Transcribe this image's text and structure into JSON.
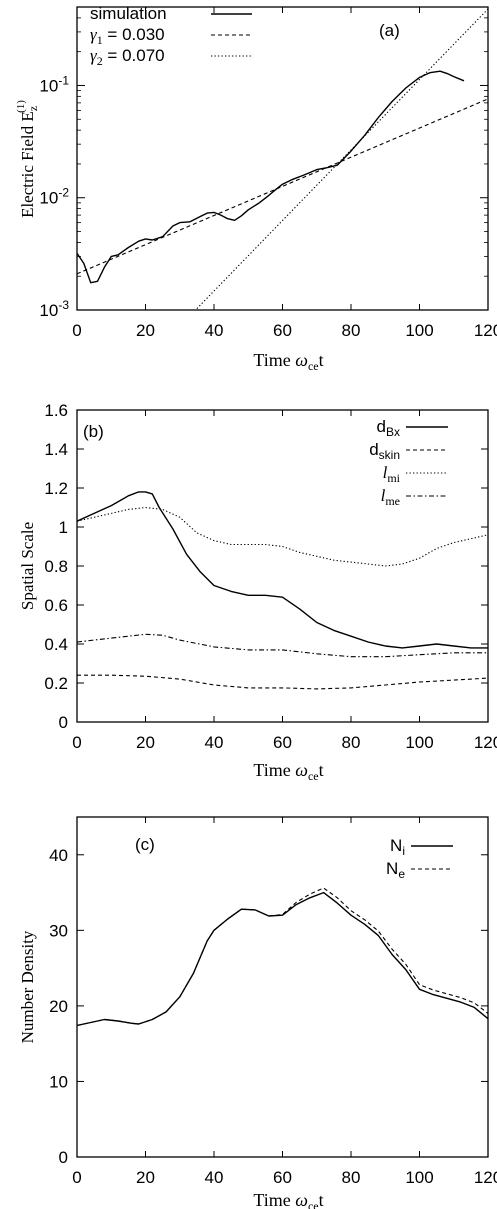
{
  "chart_data": [
    {
      "panel": "(a)",
      "type": "line",
      "xlabel": {
        "base": "Time ",
        "greek": "ω",
        "sub": "ce",
        "rest": "t"
      },
      "ylabel": {
        "base": "Electric Field E",
        "sub": "z",
        "sup": "(1)"
      },
      "yscale": "log",
      "xlim": [
        0,
        120
      ],
      "ylim": [
        0.001,
        0.5
      ],
      "xticks": [
        "0",
        "20",
        "40",
        "60",
        "80",
        "100",
        "120"
      ],
      "yticks": [
        {
          "value": 0.001,
          "base": "10",
          "exp": "-3"
        },
        {
          "value": 0.01,
          "base": "10",
          "exp": "-2"
        },
        {
          "value": 0.1,
          "base": "10",
          "exp": "-1"
        }
      ],
      "legend_position": "top-left",
      "series": [
        {
          "name": "simulation",
          "style": "solid",
          "x": [
            0,
            2,
            4,
            6,
            8,
            10,
            12,
            15,
            18,
            20,
            22,
            25,
            28,
            30,
            33,
            36,
            38,
            40,
            42,
            44,
            46,
            48,
            50,
            53,
            56,
            58,
            60,
            63,
            66,
            70,
            73,
            76,
            80,
            84,
            88,
            92,
            96,
            100,
            103,
            106,
            108,
            110,
            113
          ],
          "y": [
            0.0032,
            0.0026,
            0.00175,
            0.0018,
            0.0024,
            0.003,
            0.0031,
            0.0036,
            0.0041,
            0.0043,
            0.0042,
            0.0045,
            0.0056,
            0.006,
            0.0061,
            0.0068,
            0.0073,
            0.0074,
            0.007,
            0.0065,
            0.0063,
            0.0069,
            0.0078,
            0.0089,
            0.0105,
            0.0118,
            0.0132,
            0.0146,
            0.0158,
            0.0178,
            0.0185,
            0.0195,
            0.026,
            0.036,
            0.052,
            0.072,
            0.095,
            0.118,
            0.13,
            0.134,
            0.128,
            0.12,
            0.11
          ]
        },
        {
          "name": "γ1 = 0.030",
          "label_greek": "γ",
          "label_sub": "1",
          "label_rest": " = 0.030",
          "style": "dashed",
          "x": [
            0,
            120
          ],
          "y": [
            0.0021,
            0.076
          ]
        },
        {
          "name": "γ2 = 0.070",
          "label_greek": "γ",
          "label_sub": "2",
          "label_rest": " = 0.070",
          "style": "dotted",
          "x": [
            35,
            120
          ],
          "y": [
            0.00103,
            0.48
          ]
        }
      ]
    },
    {
      "panel": "(b)",
      "type": "line",
      "xlabel": {
        "base": "Time ",
        "greek": "ω",
        "sub": "ce",
        "rest": "t"
      },
      "ylabel": {
        "base": "Spatial Scale"
      },
      "xlim": [
        0,
        120
      ],
      "ylim": [
        0,
        1.6
      ],
      "xticks": [
        "0",
        "20",
        "40",
        "60",
        "80",
        "100",
        "120"
      ],
      "yticks": [
        "0",
        "0.2",
        "0.4",
        "0.6",
        "0.8",
        "1",
        "1.2",
        "1.4",
        "1.6"
      ],
      "legend_position": "top-right",
      "series": [
        {
          "name": "dBx",
          "label_base": "d",
          "label_sub": "Bx",
          "label_italic": false,
          "style": "solid",
          "x": [
            0,
            5,
            10,
            15,
            18,
            20,
            22,
            24,
            28,
            32,
            36,
            40,
            45,
            50,
            55,
            60,
            65,
            70,
            75,
            80,
            85,
            90,
            95,
            100,
            105,
            110,
            115,
            120
          ],
          "y": [
            1.03,
            1.07,
            1.11,
            1.16,
            1.18,
            1.18,
            1.17,
            1.1,
            0.99,
            0.86,
            0.77,
            0.7,
            0.67,
            0.65,
            0.65,
            0.64,
            0.58,
            0.51,
            0.47,
            0.44,
            0.41,
            0.39,
            0.38,
            0.39,
            0.4,
            0.39,
            0.38,
            0.38
          ]
        },
        {
          "name": "dskin",
          "label_base": "d",
          "label_sub": "skin",
          "label_italic": false,
          "style": "dashed",
          "x": [
            0,
            10,
            20,
            30,
            40,
            50,
            60,
            70,
            80,
            90,
            100,
            110,
            120
          ],
          "y": [
            0.24,
            0.24,
            0.235,
            0.22,
            0.19,
            0.175,
            0.175,
            0.17,
            0.175,
            0.19,
            0.205,
            0.215,
            0.225
          ]
        },
        {
          "name": "lmi",
          "label_base": "l",
          "label_sub": "mi",
          "label_italic": true,
          "style": "dotted",
          "x": [
            0,
            5,
            10,
            15,
            20,
            25,
            30,
            35,
            40,
            45,
            50,
            55,
            60,
            65,
            70,
            75,
            80,
            85,
            90,
            95,
            100,
            105,
            110,
            115,
            120
          ],
          "y": [
            1.03,
            1.05,
            1.07,
            1.09,
            1.1,
            1.09,
            1.05,
            0.97,
            0.93,
            0.91,
            0.91,
            0.91,
            0.9,
            0.87,
            0.85,
            0.83,
            0.82,
            0.81,
            0.8,
            0.81,
            0.84,
            0.89,
            0.92,
            0.94,
            0.96
          ]
        },
        {
          "name": "lme",
          "label_base": "l",
          "label_sub": "me",
          "label_italic": true,
          "style": "dashdot",
          "x": [
            0,
            10,
            20,
            25,
            30,
            40,
            50,
            60,
            70,
            80,
            90,
            100,
            110,
            120
          ],
          "y": [
            0.41,
            0.43,
            0.45,
            0.445,
            0.42,
            0.385,
            0.37,
            0.37,
            0.35,
            0.335,
            0.335,
            0.345,
            0.355,
            0.355
          ]
        }
      ]
    },
    {
      "panel": "(c)",
      "type": "line",
      "xlabel": {
        "base": "Time ",
        "greek": "ω",
        "sub": "ce",
        "rest": "t"
      },
      "ylabel": {
        "base": "Number Density"
      },
      "xlim": [
        0,
        120
      ],
      "ylim": [
        0,
        45
      ],
      "xticks": [
        "0",
        "20",
        "40",
        "60",
        "80",
        "100",
        "120"
      ],
      "yticks": [
        "0",
        "10",
        "20",
        "30",
        "40"
      ],
      "legend_position": "top-right",
      "series": [
        {
          "name": "Ni",
          "label_base": "N",
          "label_sub": "i",
          "label_italic": false,
          "style": "solid",
          "x": [
            0,
            4,
            8,
            12,
            16,
            18,
            22,
            26,
            30,
            34,
            38,
            40,
            44,
            48,
            52,
            56,
            60,
            64,
            68,
            72,
            76,
            80,
            84,
            88,
            92,
            96,
            100,
            104,
            108,
            112,
            116,
            120
          ],
          "y": [
            17.4,
            17.8,
            18.2,
            18.0,
            17.7,
            17.6,
            18.2,
            19.2,
            21.2,
            24.3,
            28.6,
            30.0,
            31.5,
            32.8,
            32.7,
            31.9,
            32.0,
            33.4,
            34.3,
            35.0,
            33.6,
            32.0,
            30.8,
            29.3,
            26.8,
            24.8,
            22.2,
            21.5,
            21.0,
            20.5,
            19.8,
            18.3
          ]
        },
        {
          "name": "Ne",
          "label_base": "N",
          "label_sub": "e",
          "label_italic": false,
          "style": "dashed",
          "x": [
            0,
            4,
            8,
            12,
            16,
            18,
            22,
            26,
            30,
            34,
            38,
            40,
            44,
            48,
            52,
            56,
            60,
            64,
            68,
            72,
            76,
            80,
            84,
            88,
            92,
            96,
            100,
            104,
            108,
            112,
            116,
            120
          ],
          "y": [
            17.4,
            17.8,
            18.2,
            18.0,
            17.7,
            17.6,
            18.2,
            19.2,
            21.2,
            24.3,
            28.6,
            30.0,
            31.5,
            32.8,
            32.7,
            31.9,
            32.1,
            33.7,
            34.8,
            35.6,
            34.3,
            32.6,
            31.4,
            29.9,
            27.5,
            25.5,
            22.8,
            22.1,
            21.6,
            21.1,
            20.4,
            19.0
          ]
        }
      ]
    }
  ]
}
